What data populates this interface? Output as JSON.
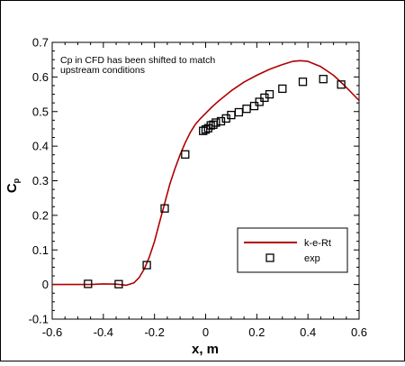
{
  "chart_data": {
    "type": "line",
    "xlabel": "x, m",
    "ylabel": "C",
    "ylabel_sub": "p",
    "xlim": [
      -0.6,
      0.6
    ],
    "ylim": [
      -0.1,
      0.7
    ],
    "xticks": [
      "-0.6",
      "-0.4",
      "-0.2",
      "0",
      "0.2",
      "0.4",
      "0.6"
    ],
    "yticks": [
      "-0.1",
      "0",
      "0.1",
      "0.2",
      "0.3",
      "0.4",
      "0.5",
      "0.6",
      "0.7"
    ],
    "annotation": [
      "Cp in CFD has been shifted to match",
      "upstream conditions"
    ],
    "legend_position": "lower-right",
    "colors": {
      "line": "#b00000",
      "marker": "#000000"
    },
    "series": [
      {
        "name": "k-e-Rt",
        "style": "line",
        "x": [
          -0.6,
          -0.5,
          -0.45,
          -0.4,
          -0.35,
          -0.31,
          -0.28,
          -0.26,
          -0.24,
          -0.22,
          -0.2,
          -0.18,
          -0.16,
          -0.14,
          -0.12,
          -0.1,
          -0.08,
          -0.06,
          -0.04,
          -0.02,
          0.0,
          0.02,
          0.05,
          0.1,
          0.15,
          0.2,
          0.25,
          0.3,
          0.34,
          0.37,
          0.4,
          0.45,
          0.5,
          0.55,
          0.6
        ],
        "y": [
          0.0,
          0.0,
          0.0,
          0.002,
          0.001,
          -0.002,
          0.005,
          0.02,
          0.045,
          0.08,
          0.125,
          0.18,
          0.235,
          0.29,
          0.335,
          0.375,
          0.41,
          0.44,
          0.463,
          0.48,
          0.495,
          0.51,
          0.53,
          0.56,
          0.585,
          0.605,
          0.622,
          0.636,
          0.645,
          0.647,
          0.645,
          0.63,
          0.605,
          0.57,
          0.532
        ]
      },
      {
        "name": "exp",
        "style": "marker",
        "x": [
          -0.46,
          -0.34,
          -0.23,
          -0.16,
          -0.08,
          -0.01,
          0.0,
          0.01,
          0.02,
          0.03,
          0.04,
          0.06,
          0.08,
          0.1,
          0.13,
          0.16,
          0.19,
          0.21,
          0.23,
          0.25,
          0.3,
          0.38,
          0.46,
          0.53
        ],
        "y": [
          0.002,
          0.001,
          0.056,
          0.22,
          0.376,
          0.444,
          0.448,
          0.452,
          0.46,
          0.462,
          0.468,
          0.472,
          0.48,
          0.49,
          0.498,
          0.508,
          0.516,
          0.528,
          0.54,
          0.55,
          0.566,
          0.586,
          0.594,
          0.578
        ]
      }
    ]
  }
}
